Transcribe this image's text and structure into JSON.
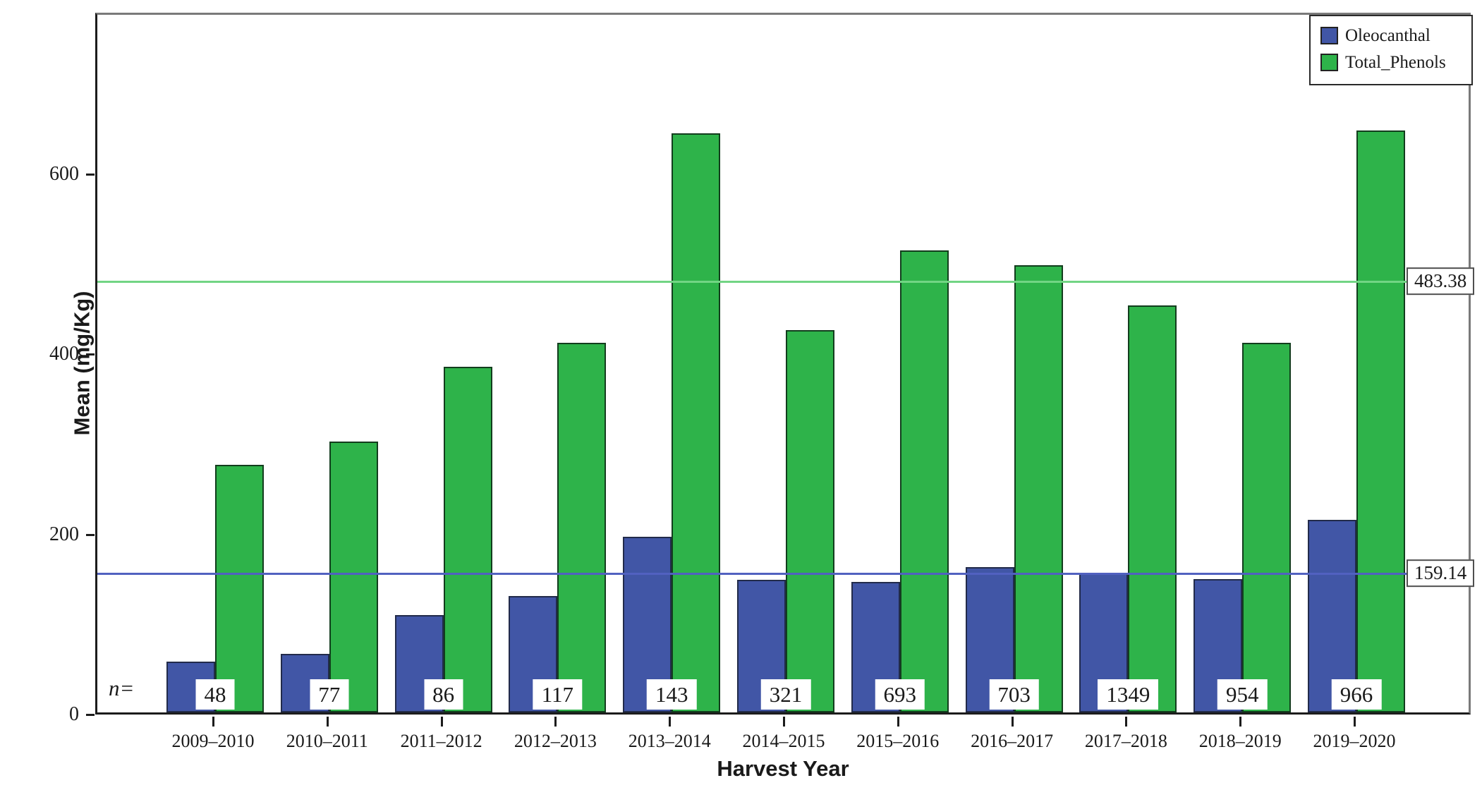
{
  "chart_data": {
    "type": "bar",
    "title": "",
    "xlabel": "Harvest Year",
    "ylabel": "Mean (mg/Kg)",
    "ylim": [
      0,
      779
    ],
    "yticks": [
      0,
      200,
      400,
      600
    ],
    "grid": false,
    "legend_position": "top-right",
    "categories": [
      "2009–2010",
      "2010–2011",
      "2011–2012",
      "2012–2013",
      "2013–2014",
      "2014–2015",
      "2015–2016",
      "2016–2017",
      "2017–2018",
      "2018–2019",
      "2019–2020"
    ],
    "series": [
      {
        "name": "Oleocanthal",
        "color": "#4156a6",
        "values": [
          56,
          65,
          108,
          129,
          195,
          147,
          145,
          161,
          154,
          148,
          214
        ]
      },
      {
        "name": "Total_Phenols",
        "color": "#2eb34a",
        "values": [
          275,
          301,
          384,
          410,
          643,
          424,
          513,
          496,
          452,
          410,
          646
        ]
      }
    ],
    "n_label_prefix": "n=",
    "n_values": [
      48,
      77,
      86,
      117,
      143,
      321,
      693,
      703,
      1349,
      954,
      966
    ],
    "reference_lines": [
      {
        "label": "483.38",
        "value": 483.38,
        "color": "#72d584",
        "series": "Total_Phenols"
      },
      {
        "label": "159.14",
        "value": 159.14,
        "color": "#5161c0",
        "series": "Oleocanthal"
      }
    ]
  },
  "style": {
    "bar_blue": "#4156a6",
    "bar_green": "#2eb34a",
    "frame_gray": "#7a7a7a",
    "axis_black": "#1c1c1c"
  }
}
